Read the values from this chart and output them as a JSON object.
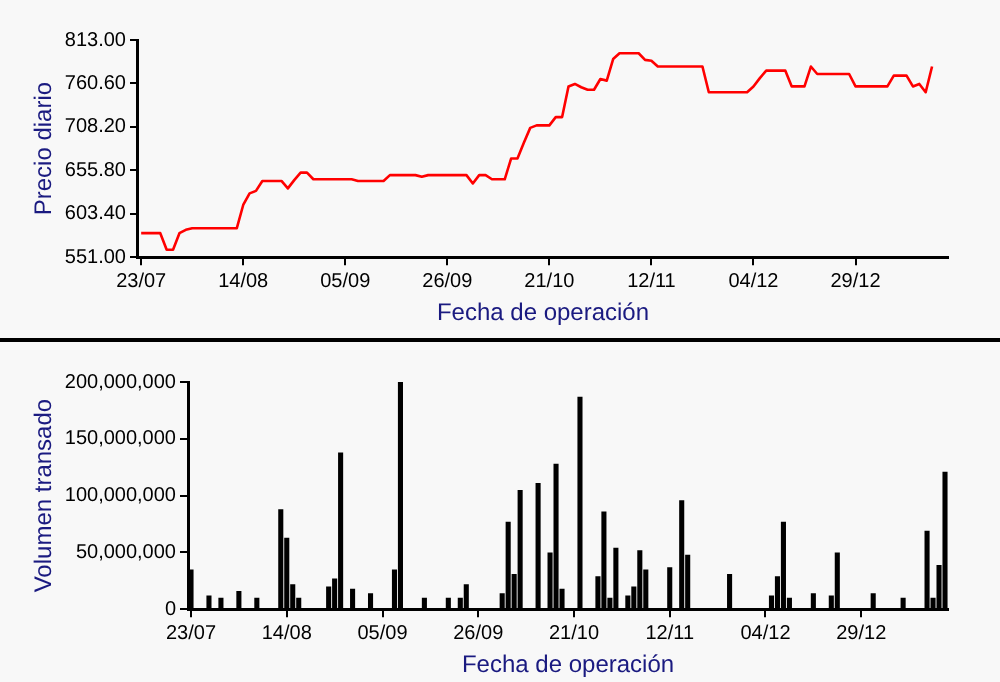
{
  "chart_data": [
    {
      "type": "line",
      "xlabel": "Fecha de operación",
      "ylabel": "Precio diario",
      "color": "#ff0000",
      "categories": [
        "23/07",
        null,
        null,
        null,
        null,
        null,
        null,
        null,
        null,
        null,
        null,
        null,
        null,
        null,
        null,
        null,
        "14/08",
        null,
        null,
        null,
        null,
        null,
        null,
        null,
        null,
        null,
        null,
        null,
        null,
        null,
        null,
        null,
        "05/09",
        null,
        null,
        null,
        null,
        null,
        null,
        null,
        null,
        null,
        null,
        null,
        null,
        null,
        null,
        null,
        "26/09",
        null,
        null,
        null,
        null,
        null,
        null,
        null,
        null,
        null,
        null,
        null,
        null,
        null,
        null,
        null,
        "21/10",
        null,
        null,
        null,
        null,
        null,
        null,
        null,
        null,
        null,
        null,
        null,
        null,
        null,
        null,
        null,
        "12/11",
        null,
        null,
        null,
        null,
        null,
        null,
        null,
        null,
        null,
        null,
        null,
        null,
        null,
        null,
        null,
        "04/12",
        null,
        null,
        null,
        null,
        null,
        null,
        null,
        null,
        null,
        null,
        null,
        null,
        null,
        null,
        null,
        "29/12",
        null,
        null,
        null,
        null,
        null,
        null,
        null,
        null,
        null,
        null,
        null,
        null,
        null,
        null
      ],
      "values": [
        580,
        580,
        580,
        580,
        560,
        560,
        580,
        584,
        586,
        586,
        586,
        586,
        586,
        586,
        586,
        586,
        614,
        628,
        631,
        643,
        643,
        643,
        643,
        634,
        644,
        653,
        653,
        645,
        645,
        645,
        645,
        645,
        645,
        645,
        643,
        643,
        643,
        643,
        643,
        650,
        650,
        650,
        650,
        650,
        648,
        650,
        650,
        650,
        650,
        650,
        650,
        650,
        640,
        650,
        650,
        645,
        645,
        645,
        670,
        670,
        689,
        707,
        710,
        710,
        710,
        720,
        720,
        757,
        760,
        756,
        753,
        753,
        766,
        764,
        790,
        797,
        797,
        797,
        797,
        789,
        788,
        781,
        781,
        781,
        781,
        781,
        781,
        781,
        781,
        750,
        750,
        750,
        750,
        750,
        750,
        750,
        757,
        767,
        776,
        776,
        776,
        776,
        757,
        757,
        757,
        781,
        772,
        772,
        772,
        772,
        772,
        772,
        757,
        757,
        757,
        757,
        757,
        757,
        770,
        770,
        770,
        757,
        760,
        750,
        781,
        null,
        null
      ],
      "ylim": [
        551,
        813
      ],
      "yticks": [
        {
          "value": 551,
          "label": "551.00"
        },
        {
          "value": 603.4,
          "label": "603.40"
        },
        {
          "value": 655.8,
          "label": "655.80"
        },
        {
          "value": 708.2,
          "label": "708.20"
        },
        {
          "value": 760.6,
          "label": "760.60"
        },
        {
          "value": 813,
          "label": "813.00"
        }
      ]
    },
    {
      "type": "bar",
      "xlabel": "Fecha de operación",
      "ylabel": "Volumen transado",
      "color": "#000000",
      "categories": [
        "23/07",
        null,
        null,
        null,
        null,
        null,
        null,
        null,
        null,
        null,
        null,
        null,
        null,
        null,
        null,
        null,
        "14/08",
        null,
        null,
        null,
        null,
        null,
        null,
        null,
        null,
        null,
        null,
        null,
        null,
        null,
        null,
        null,
        "05/09",
        null,
        null,
        null,
        null,
        null,
        null,
        null,
        null,
        null,
        null,
        null,
        null,
        null,
        null,
        null,
        "26/09",
        null,
        null,
        null,
        null,
        null,
        null,
        null,
        null,
        null,
        null,
        null,
        null,
        null,
        null,
        null,
        "21/10",
        null,
        null,
        null,
        null,
        null,
        null,
        null,
        null,
        null,
        null,
        null,
        null,
        null,
        null,
        null,
        "12/11",
        null,
        null,
        null,
        null,
        null,
        null,
        null,
        null,
        null,
        null,
        null,
        null,
        null,
        null,
        null,
        "04/12",
        null,
        null,
        null,
        null,
        null,
        null,
        null,
        null,
        null,
        null,
        null,
        null,
        null,
        null,
        null,
        "29/12",
        null,
        null,
        null,
        null,
        null,
        null,
        null,
        null,
        null,
        null,
        null,
        null,
        null,
        null
      ],
      "values": [
        35000000,
        null,
        null,
        12000000,
        null,
        10000000,
        null,
        null,
        16000000,
        null,
        null,
        10000000,
        null,
        null,
        null,
        88000000,
        63000000,
        22000000,
        10000000,
        null,
        null,
        null,
        null,
        20000000,
        27000000,
        138000000,
        null,
        18000000,
        null,
        null,
        14000000,
        null,
        null,
        null,
        35000000,
        200000000,
        null,
        null,
        null,
        10000000,
        null,
        null,
        null,
        10000000,
        null,
        10000000,
        22000000,
        null,
        null,
        null,
        null,
        null,
        14000000,
        77000000,
        31000000,
        105000000,
        null,
        null,
        111000000,
        null,
        50000000,
        128000000,
        18000000,
        null,
        null,
        187000000,
        null,
        null,
        29000000,
        86000000,
        10000000,
        54000000,
        null,
        12000000,
        20000000,
        52000000,
        35000000,
        null,
        null,
        null,
        37000000,
        null,
        96000000,
        48000000,
        null,
        null,
        null,
        null,
        null,
        null,
        31000000,
        null,
        null,
        null,
        null,
        null,
        null,
        12000000,
        29000000,
        77000000,
        10000000,
        null,
        null,
        null,
        14000000,
        null,
        null,
        12000000,
        50000000,
        null,
        null,
        null,
        null,
        null,
        14000000,
        null,
        null,
        null,
        null,
        10000000,
        null,
        null,
        null,
        69000000,
        10000000,
        39000000,
        121000000
      ],
      "ylim": [
        0,
        200000000
      ],
      "yticks": [
        0,
        {
          "value": 50000000,
          "label": "50,000,000"
        },
        {
          "value": 100000000,
          "label": "100,000,000"
        },
        {
          "value": 150000000,
          "label": "150,000,000"
        },
        {
          "value": 200000000,
          "label": "200,000,000"
        }
      ]
    }
  ]
}
